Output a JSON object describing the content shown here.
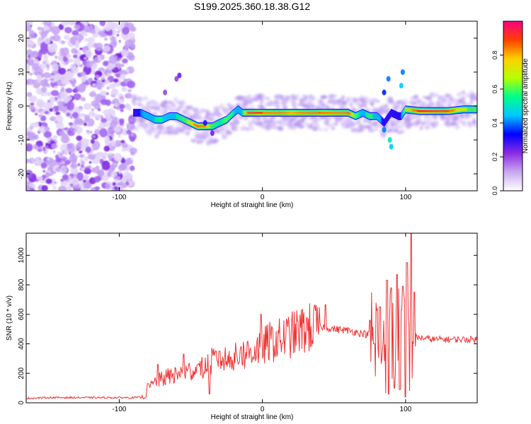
{
  "title": "S199.2025.360.18.38.G12",
  "chart_data": [
    {
      "type": "heatmap",
      "xlabel": "Height of straight line (km)",
      "ylabel": "Frequency (Hz)",
      "xlim": [
        -165,
        150
      ],
      "ylim": [
        -25,
        25
      ],
      "xticks": [
        -100,
        0,
        100
      ],
      "yticks": [
        -20,
        -10,
        0,
        10,
        20
      ],
      "colorbar": {
        "label": "Normalized spectral amplitude",
        "range": [
          0.0,
          1.0
        ],
        "ticks": [
          "0.0",
          "0.2",
          "0.4",
          "0.6",
          "0.8"
        ],
        "colors": [
          "#ffffff",
          "#c8a8f0",
          "#8a2be2",
          "#0000ff",
          "#00c8ff",
          "#00ff88",
          "#b8ff00",
          "#ffd000",
          "#ff4000",
          "#ff0080"
        ]
      },
      "noise_region_x": [
        -165,
        -90
      ],
      "ridge": {
        "x": [
          -90,
          -85,
          -80,
          -75,
          -70,
          -65,
          -60,
          -55,
          -50,
          -45,
          -40,
          -35,
          -30,
          -25,
          -20,
          -17,
          -14,
          -10,
          -5,
          0,
          10,
          20,
          30,
          40,
          50,
          60,
          65,
          70,
          75,
          80,
          85,
          90,
          95,
          97,
          100,
          110,
          120,
          130,
          140,
          150
        ],
        "y": [
          -2,
          -2,
          -3,
          -4,
          -4,
          -3,
          -3,
          -4,
          -5,
          -6,
          -6,
          -6,
          -5,
          -4,
          -2,
          -1,
          -2,
          -2,
          -2,
          -2,
          -2,
          -2,
          -2,
          -2,
          -2,
          -2,
          -3,
          -2,
          -3,
          -3,
          -5,
          -2,
          -3,
          -3,
          -1,
          -1.5,
          -1.5,
          -1.5,
          -1,
          -1
        ],
        "amp": [
          0.3,
          0.4,
          0.5,
          0.55,
          0.55,
          0.5,
          0.55,
          0.6,
          0.75,
          0.9,
          0.85,
          0.6,
          0.55,
          0.6,
          0.55,
          0.5,
          0.55,
          0.9,
          0.9,
          0.9,
          0.85,
          0.8,
          0.85,
          0.9,
          0.85,
          0.9,
          0.6,
          0.5,
          0.6,
          0.5,
          0.35,
          0.3,
          0.35,
          0.4,
          0.7,
          0.95,
          0.95,
          0.9,
          0.7,
          0.6
        ]
      }
    },
    {
      "type": "line",
      "xlabel": "Height of straight line (km)",
      "ylabel": "SNR (10 * v/v)",
      "xlim": [
        -165,
        150
      ],
      "ylim": [
        0,
        1150
      ],
      "xticks": [
        -100,
        0,
        100
      ],
      "yticks": [
        0,
        200,
        400,
        600,
        800,
        1000
      ],
      "series_color": "#ee3333",
      "series": [
        {
          "name": "SNR",
          "x": [
            -165,
            -150,
            -120,
            -90,
            -82,
            -78,
            -75,
            -70,
            -65,
            -60,
            -55,
            -50,
            -45,
            -40,
            -35,
            -30,
            -25,
            -20,
            -15,
            -10,
            -5,
            0,
            5,
            10,
            15,
            20,
            25,
            30,
            35,
            40,
            45,
            50,
            55,
            60,
            65,
            70,
            75,
            80,
            85,
            90,
            95,
            100,
            103,
            105,
            110,
            120,
            130,
            140,
            150
          ],
          "y": [
            30,
            35,
            35,
            35,
            40,
            110,
            140,
            160,
            180,
            200,
            200,
            220,
            220,
            240,
            280,
            300,
            290,
            300,
            320,
            340,
            360,
            380,
            410,
            420,
            440,
            460,
            480,
            500,
            510,
            520,
            510,
            500,
            495,
            490,
            480,
            470,
            460,
            450,
            440,
            440,
            420,
            400,
            420,
            450,
            440,
            430,
            430,
            430,
            430
          ]
        }
      ],
      "spikes": [
        {
          "x": -80,
          "y": 130
        },
        {
          "x": -73,
          "y": 260
        },
        {
          "x": -60,
          "y": 200
        },
        {
          "x": -55,
          "y": 330
        },
        {
          "x": -45,
          "y": 260
        },
        {
          "x": -37,
          "y": 60
        },
        {
          "x": -30,
          "y": 350
        },
        {
          "x": -22,
          "y": 310
        },
        {
          "x": -15,
          "y": 380
        },
        {
          "x": -1,
          "y": 600
        },
        {
          "x": 44,
          "y": 665
        },
        {
          "x": 75,
          "y": 560
        },
        {
          "x": 78,
          "y": 400
        },
        {
          "x": 82,
          "y": 650
        },
        {
          "x": 87,
          "y": 830
        },
        {
          "x": 88,
          "y": 60
        },
        {
          "x": 90,
          "y": 780
        },
        {
          "x": 92,
          "y": 100
        },
        {
          "x": 94,
          "y": 870
        },
        {
          "x": 96,
          "y": 90
        },
        {
          "x": 98,
          "y": 790
        },
        {
          "x": 100,
          "y": 40
        },
        {
          "x": 101,
          "y": 950
        },
        {
          "x": 104,
          "y": 1150
        },
        {
          "x": 106,
          "y": 750
        }
      ]
    }
  ]
}
